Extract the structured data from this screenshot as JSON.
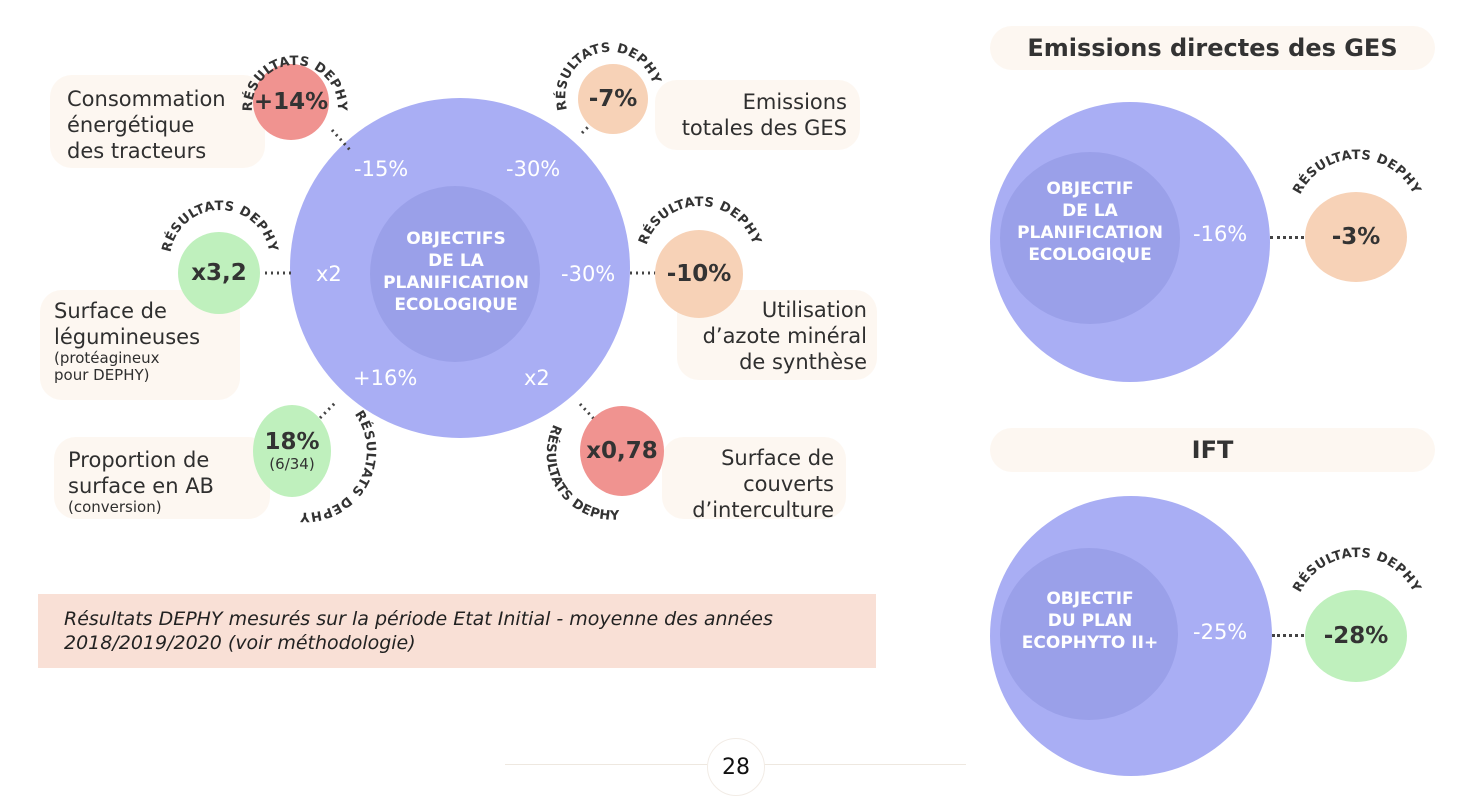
{
  "arc_label": {
    "top": "RÉSULTATS DEPHY",
    "bottom": "RÉSULTATS DEPHY",
    "top_right": "RÉSULTATS DEPHY",
    "bottom_right": "RÉSULTATS DEPHY"
  },
  "main": {
    "center_text": [
      "OBJECTIFS",
      "DE LA",
      "PLANIFICATION",
      "ECOLOGIQUE"
    ],
    "objectives": {
      "energy": "-15%",
      "ges_total": "-30%",
      "legumes": "x2",
      "azote": "-30%",
      "ab": "+16%",
      "intercultures": "x2"
    },
    "items": {
      "energy": {
        "label": [
          "Consommation",
          "énergétique",
          "des tracteurs"
        ],
        "result": "+14%",
        "color": "#f09390"
      },
      "ges_total": {
        "label": [
          "Emissions",
          "totales des GES"
        ],
        "result": "-7%",
        "color": "#f7d2b7"
      },
      "legumes": {
        "label": [
          "Surface de",
          "légumineuses"
        ],
        "label_small": [
          "(protéagineux",
          "pour DEPHY)"
        ],
        "result": "x3,2",
        "color": "#bff0bd"
      },
      "azote": {
        "label": [
          "Utilisation",
          "d’azote minéral",
          "de synthèse"
        ],
        "result": "-10%",
        "color": "#f7d2b7"
      },
      "ab": {
        "label": [
          "Proportion de",
          "surface en AB"
        ],
        "label_small": [
          "(conversion)"
        ],
        "result": "18%",
        "result_sub": "(6/34)",
        "color": "#bff0bd"
      },
      "intercultures": {
        "label": [
          "Surface de",
          "couverts",
          "d’interculture"
        ],
        "result": "x0,78",
        "color": "#f09390"
      }
    }
  },
  "note": "Résultats DEPHY mesurés sur la période Etat Initial - moyenne des années 2018/2019/2020 (voir méthodologie)",
  "ges_direct": {
    "title": "Emissions directes des GES",
    "center_text": [
      "OBJECTIF",
      "DE LA",
      "PLANIFICATION",
      "ECOLOGIQUE"
    ],
    "objective": "-16%",
    "result": "-3%",
    "color": "#f7d2b7"
  },
  "ift": {
    "title": "IFT",
    "center_text": [
      "OBJECTIF",
      "DU PLAN",
      "ECOPHYTO II+"
    ],
    "objective": "-25%",
    "result": "-28%",
    "color": "#bff0bd"
  },
  "page_number": "28"
}
